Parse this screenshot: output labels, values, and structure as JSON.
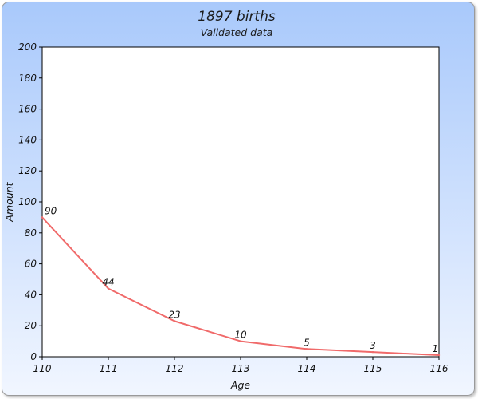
{
  "chart_data": {
    "type": "line",
    "title": "1897 births",
    "subtitle": "Validated data",
    "xlabel": "Age",
    "ylabel": "Amount",
    "x": [
      110,
      111,
      112,
      113,
      114,
      115,
      116
    ],
    "series": [
      {
        "values": [
          90,
          44,
          23,
          10,
          5,
          3,
          1
        ],
        "color": "#f06a6a"
      }
    ],
    "data_labels": [
      "90",
      "44",
      "23",
      "10",
      "5",
      "3",
      "1"
    ],
    "xlim": [
      110,
      116
    ],
    "ylim": [
      0,
      200
    ],
    "y_ticks": [
      0,
      20,
      40,
      60,
      80,
      100,
      120,
      140,
      160,
      180,
      200
    ],
    "x_ticks": [
      110,
      111,
      112,
      113,
      114,
      115,
      116
    ],
    "grid": false,
    "legend": "none",
    "colors": {
      "line": "#f06a6a",
      "plot_background": "#ffffff",
      "plot_border": "#000000",
      "frame_gradient_top": "#a9c9fb",
      "frame_gradient_bottom": "#f1f6ff"
    }
  }
}
